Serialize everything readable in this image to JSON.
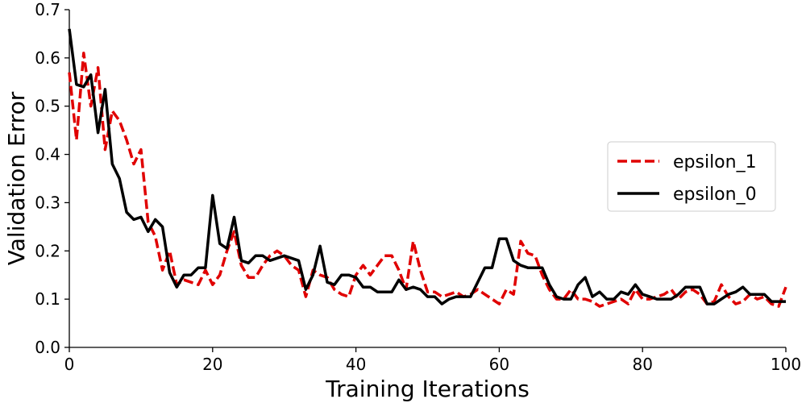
{
  "chart_data": {
    "type": "line",
    "xlabel": "Training Iterations",
    "ylabel": "Validation Error",
    "xlim": [
      0,
      100
    ],
    "ylim": [
      0.0,
      0.7
    ],
    "xticks": [
      0,
      20,
      40,
      60,
      80,
      100
    ],
    "xtick_labels": [
      "0",
      "20",
      "40",
      "60",
      "80",
      "100"
    ],
    "yticks": [
      0.0,
      0.1,
      0.2,
      0.3,
      0.4,
      0.5,
      0.6,
      0.7
    ],
    "ytick_labels": [
      "0.0",
      "0.1",
      "0.2",
      "0.3",
      "0.4",
      "0.5",
      "0.6",
      "0.7"
    ],
    "grid": false,
    "legend_position": "center-right",
    "series": [
      {
        "name": "epsilon_1",
        "color": "#e00000",
        "style": "dashed",
        "x": [
          0,
          1,
          2,
          3,
          4,
          5,
          6,
          7,
          8,
          9,
          10,
          11,
          12,
          13,
          14,
          15,
          16,
          17,
          18,
          19,
          20,
          21,
          22,
          23,
          24,
          25,
          26,
          27,
          28,
          29,
          30,
          31,
          32,
          33,
          34,
          35,
          36,
          37,
          38,
          39,
          40,
          41,
          42,
          43,
          44,
          45,
          46,
          47,
          48,
          49,
          50,
          51,
          52,
          53,
          54,
          55,
          56,
          57,
          58,
          59,
          60,
          61,
          62,
          63,
          64,
          65,
          66,
          67,
          68,
          69,
          70,
          71,
          72,
          73,
          74,
          75,
          76,
          77,
          78,
          79,
          80,
          81,
          82,
          83,
          84,
          85,
          86,
          87,
          88,
          89,
          90,
          91,
          92,
          93,
          94,
          95,
          96,
          97,
          98,
          99,
          100
        ],
        "y": [
          0.57,
          0.43,
          0.61,
          0.5,
          0.58,
          0.41,
          0.49,
          0.47,
          0.43,
          0.38,
          0.41,
          0.26,
          0.23,
          0.16,
          0.2,
          0.13,
          0.14,
          0.135,
          0.13,
          0.16,
          0.13,
          0.15,
          0.2,
          0.24,
          0.17,
          0.145,
          0.145,
          0.17,
          0.19,
          0.2,
          0.19,
          0.17,
          0.16,
          0.105,
          0.16,
          0.15,
          0.145,
          0.12,
          0.11,
          0.105,
          0.15,
          0.17,
          0.15,
          0.17,
          0.19,
          0.19,
          0.16,
          0.12,
          0.22,
          0.16,
          0.115,
          0.115,
          0.105,
          0.11,
          0.115,
          0.105,
          0.11,
          0.12,
          0.11,
          0.1,
          0.09,
          0.12,
          0.11,
          0.22,
          0.195,
          0.19,
          0.15,
          0.12,
          0.1,
          0.1,
          0.12,
          0.1,
          0.1,
          0.095,
          0.085,
          0.09,
          0.095,
          0.1,
          0.09,
          0.12,
          0.1,
          0.1,
          0.105,
          0.11,
          0.12,
          0.1,
          0.115,
          0.12,
          0.11,
          0.09,
          0.095,
          0.13,
          0.105,
          0.09,
          0.095,
          0.11,
          0.1,
          0.105,
          0.09,
          0.085,
          0.125
        ]
      },
      {
        "name": "epsilon_0",
        "color": "#000000",
        "style": "solid",
        "x": [
          0,
          1,
          2,
          3,
          4,
          5,
          6,
          7,
          8,
          9,
          10,
          11,
          12,
          13,
          14,
          15,
          16,
          17,
          18,
          19,
          20,
          21,
          22,
          23,
          24,
          25,
          26,
          27,
          28,
          29,
          30,
          31,
          32,
          33,
          34,
          35,
          36,
          37,
          38,
          39,
          40,
          41,
          42,
          43,
          44,
          45,
          46,
          47,
          48,
          49,
          50,
          51,
          52,
          53,
          54,
          55,
          56,
          57,
          58,
          59,
          60,
          61,
          62,
          63,
          64,
          65,
          66,
          67,
          68,
          69,
          70,
          71,
          72,
          73,
          74,
          75,
          76,
          77,
          78,
          79,
          80,
          81,
          82,
          83,
          84,
          85,
          86,
          87,
          88,
          89,
          90,
          91,
          92,
          93,
          94,
          95,
          96,
          97,
          98,
          99,
          100
        ],
        "y": [
          0.66,
          0.545,
          0.54,
          0.565,
          0.445,
          0.535,
          0.38,
          0.35,
          0.28,
          0.265,
          0.27,
          0.24,
          0.265,
          0.25,
          0.155,
          0.125,
          0.15,
          0.15,
          0.165,
          0.165,
          0.315,
          0.215,
          0.205,
          0.27,
          0.18,
          0.175,
          0.19,
          0.19,
          0.18,
          0.185,
          0.19,
          0.185,
          0.18,
          0.12,
          0.15,
          0.21,
          0.135,
          0.13,
          0.15,
          0.15,
          0.145,
          0.125,
          0.125,
          0.115,
          0.115,
          0.115,
          0.14,
          0.12,
          0.125,
          0.12,
          0.105,
          0.105,
          0.09,
          0.1,
          0.105,
          0.105,
          0.105,
          0.135,
          0.165,
          0.165,
          0.225,
          0.225,
          0.18,
          0.17,
          0.165,
          0.165,
          0.165,
          0.13,
          0.105,
          0.1,
          0.1,
          0.13,
          0.145,
          0.105,
          0.115,
          0.1,
          0.1,
          0.115,
          0.11,
          0.13,
          0.11,
          0.105,
          0.1,
          0.1,
          0.1,
          0.11,
          0.125,
          0.125,
          0.125,
          0.09,
          0.09,
          0.1,
          0.11,
          0.115,
          0.125,
          0.11,
          0.11,
          0.11,
          0.095,
          0.095,
          0.095
        ]
      }
    ]
  }
}
